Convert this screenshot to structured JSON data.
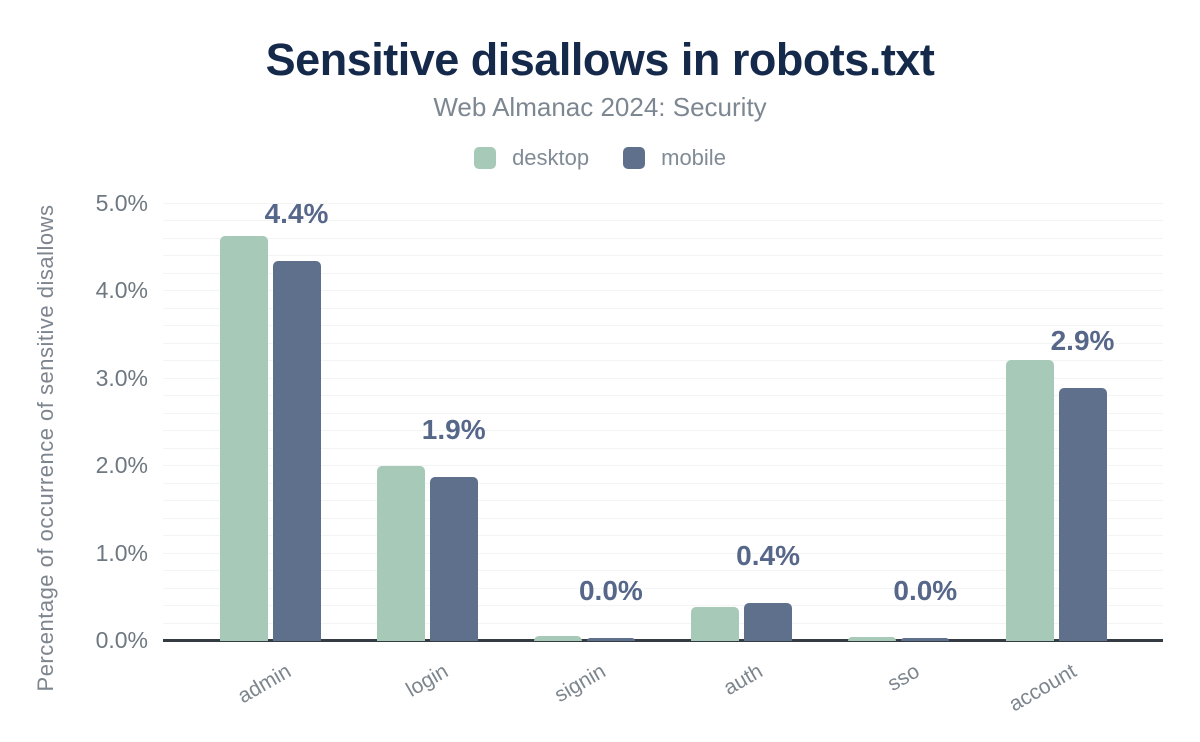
{
  "figure": {
    "title": "Sensitive disallows in robots.txt",
    "subtitle": "Web Almanac 2024: Security"
  },
  "legend": {
    "items": [
      {
        "label": "desktop",
        "color": "#a7c9b7"
      },
      {
        "label": "mobile",
        "color": "#5f708c"
      }
    ]
  },
  "y_axis": {
    "title": "Percentage of occurrence of sensitive disallows",
    "tick_labels": [
      "0.0%",
      "1.0%",
      "2.0%",
      "3.0%",
      "4.0%",
      "5.0%"
    ]
  },
  "chart_data": {
    "type": "bar",
    "title": "Sensitive disallows in robots.txt",
    "subtitle": "Web Almanac 2024: Security",
    "categories": [
      "admin",
      "login",
      "signin",
      "auth",
      "sso",
      "account"
    ],
    "series": [
      {
        "name": "desktop",
        "color": "#a7c9b7",
        "values": [
          4.63,
          2.0,
          0.06,
          0.39,
          0.05,
          3.21
        ]
      },
      {
        "name": "mobile",
        "color": "#5f708c",
        "values": [
          4.35,
          1.88,
          0.04,
          0.44,
          0.04,
          2.89
        ]
      }
    ],
    "annotations": {
      "series": "mobile",
      "labels": [
        "4.4%",
        "1.9%",
        "0.0%",
        "0.4%",
        "0.0%",
        "2.9%"
      ]
    },
    "xlabel": "",
    "ylabel": "Percentage of occurrence of sensitive disallows",
    "ylim": [
      0,
      5
    ],
    "y_tick_step": 1.0,
    "y_minor_grid_step": 0.2,
    "grid": true,
    "legend_position": "top"
  },
  "colors": {
    "title": "#15294b",
    "subtitle": "#7d8792",
    "annotation": "#56678a",
    "axis_line": "#343b42",
    "grid_line": "#f3f4f4",
    "y_tick_text": "#6e7881",
    "x_tick_text": "#7d858d",
    "background": "#ffffff"
  }
}
